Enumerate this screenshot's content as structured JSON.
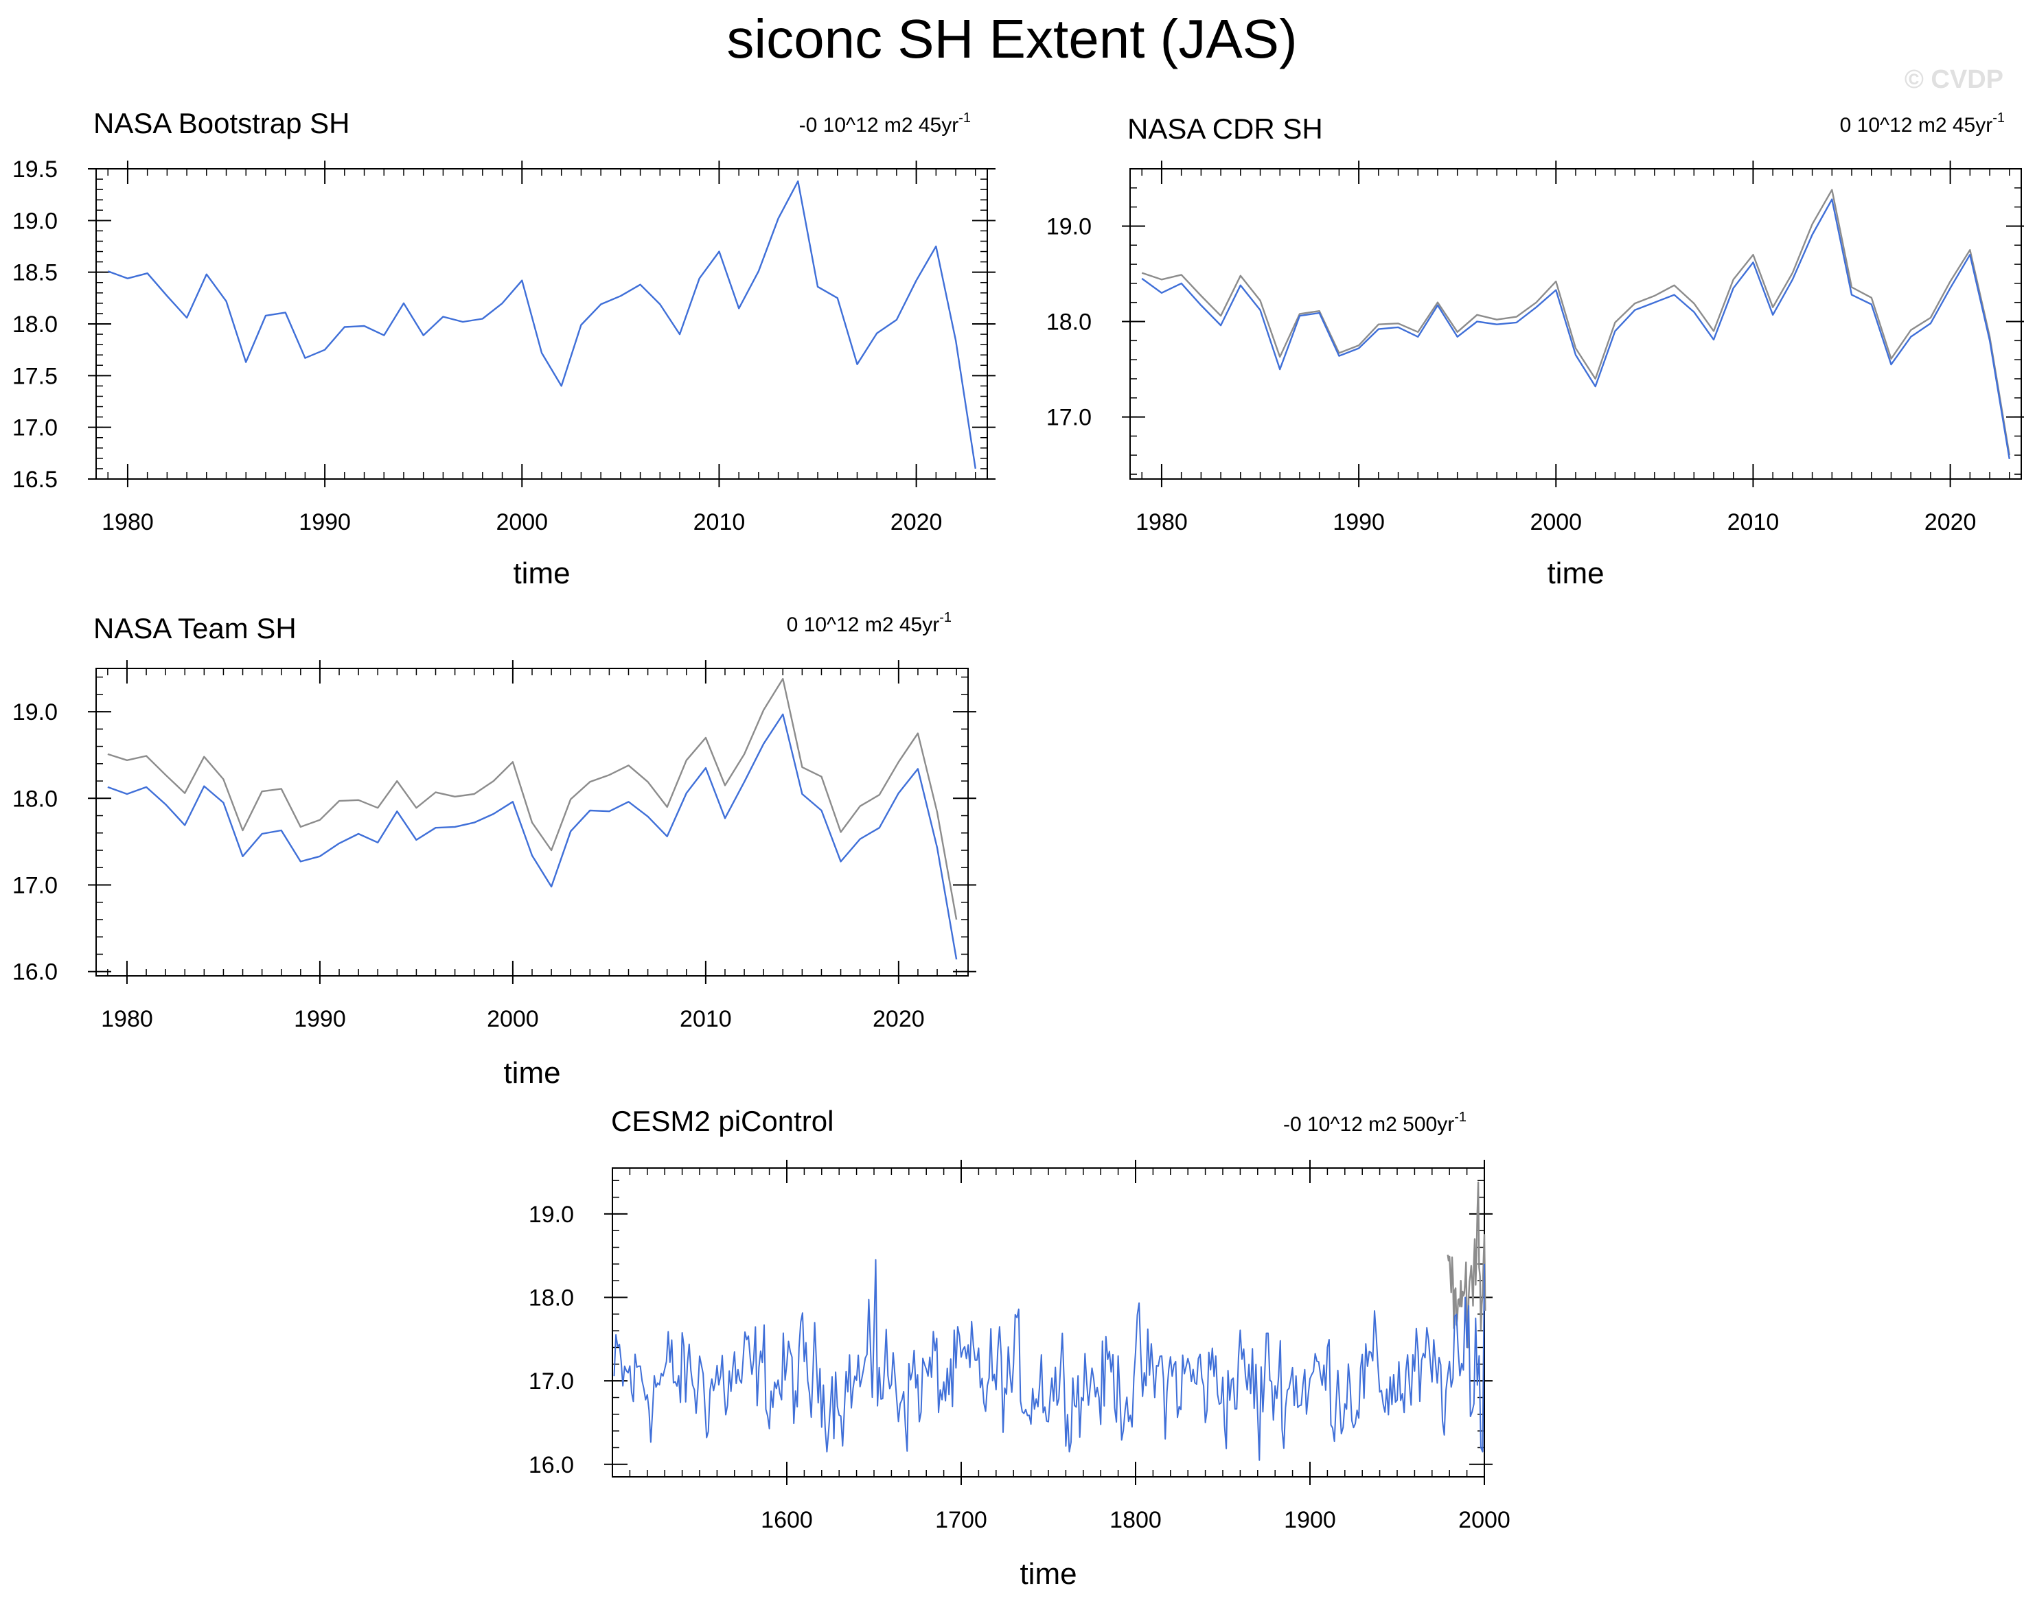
{
  "figure": {
    "title": "siconc SH Extent (JAS)",
    "watermark": "© CVDP",
    "colors": {
      "model": "#3f6fd8",
      "obs": "#8c8c8c",
      "axis": "#000000",
      "watermark": "#e0e0e0"
    }
  },
  "chart_data": [
    {
      "type": "line",
      "title": "NASA Bootstrap SH",
      "trend_text": "-0 10^12 m2 45yr",
      "trend_sup": "-1",
      "xlabel": "time",
      "ylabel": "",
      "xlim": [
        1978.4,
        2023.6
      ],
      "ylim": [
        16.5,
        19.5
      ],
      "xticks": [
        1980,
        1990,
        2000,
        2010,
        2020
      ],
      "yticks": [
        16.5,
        17.0,
        17.5,
        18.0,
        18.5,
        19.0,
        19.5
      ],
      "ytick_labels": [
        "16.5",
        "17.0",
        "17.5",
        "18.0",
        "18.5",
        "19.0",
        "19.5"
      ],
      "x_start": 1979,
      "series": [
        {
          "name": "NASA Bootstrap SH",
          "color": "model",
          "values": [
            18.51,
            18.44,
            18.49,
            18.27,
            18.06,
            18.48,
            18.22,
            17.63,
            18.08,
            18.11,
            17.67,
            17.75,
            17.97,
            17.98,
            17.89,
            18.2,
            17.89,
            18.07,
            18.02,
            18.05,
            18.2,
            18.42,
            17.72,
            17.4,
            17.99,
            18.19,
            18.27,
            18.38,
            18.19,
            17.9,
            18.44,
            18.7,
            18.15,
            18.51,
            19.02,
            19.38,
            18.36,
            18.25,
            17.61,
            17.91,
            18.04,
            18.42,
            18.75,
            17.84,
            16.6
          ]
        }
      ]
    },
    {
      "type": "line",
      "title": "NASA CDR SH",
      "trend_text": "0 10^12 m2 45yr",
      "trend_sup": "-1",
      "xlabel": "time",
      "ylabel": "",
      "xlim": [
        1978.4,
        2023.6
      ],
      "ylim": [
        16.35,
        19.6
      ],
      "xticks": [
        1980,
        1990,
        2000,
        2010,
        2020
      ],
      "yticks": [
        17.0,
        18.0,
        19.0
      ],
      "ytick_labels": [
        "17.0",
        "18.0",
        "19.0"
      ],
      "x_start": 1979,
      "series": [
        {
          "name": "NASA Bootstrap SH",
          "color": "obs",
          "values": [
            18.51,
            18.44,
            18.49,
            18.27,
            18.06,
            18.48,
            18.22,
            17.63,
            18.08,
            18.11,
            17.67,
            17.75,
            17.97,
            17.98,
            17.89,
            18.2,
            17.89,
            18.07,
            18.02,
            18.05,
            18.2,
            18.42,
            17.72,
            17.4,
            17.99,
            18.19,
            18.27,
            18.38,
            18.19,
            17.9,
            18.44,
            18.7,
            18.15,
            18.51,
            19.02,
            19.38,
            18.36,
            18.25,
            17.61,
            17.91,
            18.04,
            18.42,
            18.75,
            17.84,
            16.6
          ]
        },
        {
          "name": "NASA CDR SH",
          "color": "model",
          "values": [
            18.45,
            18.3,
            18.4,
            18.17,
            17.96,
            18.38,
            18.12,
            17.5,
            18.06,
            18.09,
            17.64,
            17.72,
            17.92,
            17.94,
            17.84,
            18.17,
            17.84,
            18.0,
            17.97,
            17.99,
            18.15,
            18.33,
            17.65,
            17.32,
            17.9,
            18.12,
            18.2,
            18.28,
            18.1,
            17.81,
            18.35,
            18.62,
            18.07,
            18.44,
            18.91,
            19.28,
            18.28,
            18.18,
            17.55,
            17.84,
            17.98,
            18.35,
            18.7,
            17.8,
            16.56
          ]
        }
      ]
    },
    {
      "type": "line",
      "title": "NASA Team SH",
      "trend_text": "0 10^12 m2 45yr",
      "trend_sup": "-1",
      "xlabel": "time",
      "ylabel": "",
      "xlim": [
        1978.4,
        2023.6
      ],
      "ylim": [
        15.95,
        19.5
      ],
      "xticks": [
        1980,
        1990,
        2000,
        2010,
        2020
      ],
      "yticks": [
        16.0,
        17.0,
        18.0,
        19.0
      ],
      "ytick_labels": [
        "16.0",
        "17.0",
        "18.0",
        "19.0"
      ],
      "x_start": 1979,
      "series": [
        {
          "name": "NASA Bootstrap SH",
          "color": "obs",
          "values": [
            18.51,
            18.44,
            18.49,
            18.27,
            18.06,
            18.48,
            18.22,
            17.63,
            18.08,
            18.11,
            17.67,
            17.75,
            17.97,
            17.98,
            17.89,
            18.2,
            17.89,
            18.07,
            18.02,
            18.05,
            18.2,
            18.42,
            17.72,
            17.4,
            17.99,
            18.19,
            18.27,
            18.38,
            18.19,
            17.9,
            18.44,
            18.7,
            18.15,
            18.51,
            19.02,
            19.38,
            18.36,
            18.25,
            17.61,
            17.91,
            18.04,
            18.42,
            18.75,
            17.84,
            16.6
          ]
        },
        {
          "name": "NASA Team SH",
          "color": "model",
          "values": [
            18.13,
            18.05,
            18.13,
            17.93,
            17.69,
            18.14,
            17.95,
            17.33,
            17.59,
            17.63,
            17.27,
            17.33,
            17.48,
            17.59,
            17.49,
            17.85,
            17.52,
            17.66,
            17.67,
            17.72,
            17.82,
            17.96,
            17.34,
            16.98,
            17.62,
            17.86,
            17.85,
            17.96,
            17.79,
            17.56,
            18.06,
            18.35,
            17.77,
            18.19,
            18.63,
            18.97,
            18.05,
            17.86,
            17.27,
            17.53,
            17.66,
            18.06,
            18.34,
            17.43,
            16.14
          ]
        }
      ]
    },
    {
      "type": "line",
      "title": "CESM2 piControl",
      "trend_text": "-0 10^12 m2 500yr",
      "trend_sup": "-1",
      "xlabel": "time",
      "ylabel": "",
      "xlim": [
        1500,
        2000
      ],
      "ylim": [
        15.85,
        19.55
      ],
      "xticks": [
        1600,
        1700,
        1800,
        1900,
        2000
      ],
      "yticks": [
        16.0,
        17.0,
        18.0,
        19.0
      ],
      "ytick_labels": [
        "16.0",
        "17.0",
        "18.0",
        "19.0"
      ],
      "series": [
        {
          "name": "CESM2 piControl",
          "color": "model",
          "x_start": 1501,
          "generator": "picontrol",
          "peak_max": 18.45,
          "peak_min": 16.05,
          "end_value": 16.15
        },
        {
          "name": "NASA Bootstrap SH",
          "color": "obs",
          "x_start": 1979,
          "x_step": 0.5,
          "values": [
            18.51,
            18.44,
            18.49,
            18.27,
            18.06,
            18.48,
            18.22,
            17.63,
            18.08,
            18.11,
            17.67,
            17.75,
            17.97,
            17.98,
            17.89,
            18.2,
            17.89,
            18.07,
            18.02,
            18.05,
            18.2,
            18.42,
            17.72,
            17.4,
            17.99,
            18.19,
            18.27,
            18.38,
            18.19,
            17.9,
            18.44,
            18.7,
            18.15,
            18.51,
            19.02,
            19.38,
            18.36,
            18.25,
            17.61,
            17.91,
            18.04,
            18.42,
            18.75,
            17.84
          ]
        }
      ]
    }
  ]
}
